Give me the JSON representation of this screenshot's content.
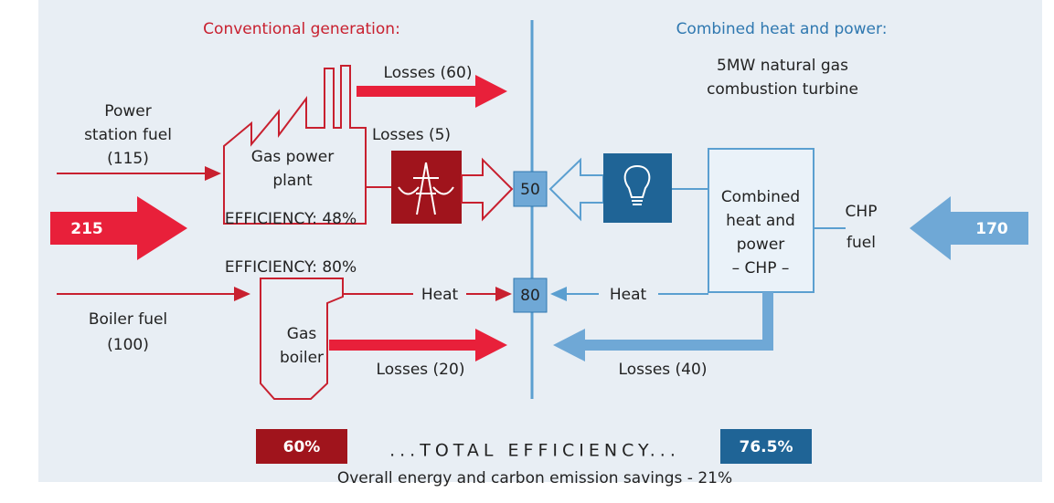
{
  "left": {
    "heading": "Conventional generation:",
    "input_total": "215",
    "power_fuel": [
      "Power",
      "station fuel",
      "(115)"
    ],
    "plant": [
      "Gas power",
      "plant"
    ],
    "plant_efficiency": "EFFICIENCY: 48%",
    "losses_plant": "Losses (60)",
    "losses_transmission": "Losses (5)",
    "boiler_efficiency": "EFFICIENCY: 80%",
    "boiler_fuel": [
      "Boiler fuel",
      "(100)"
    ],
    "boiler": [
      "Gas",
      "boiler"
    ],
    "heat": "Heat",
    "losses_boiler": "Losses (20)"
  },
  "center": {
    "electricity": "50",
    "heat": "80"
  },
  "right": {
    "heading": "Combined heat and power:",
    "subheading": [
      "5MW natural gas",
      "combustion turbine"
    ],
    "chp": [
      "Combined",
      "heat and",
      "power",
      "– CHP –"
    ],
    "fuel": [
      "CHP",
      "fuel"
    ],
    "input_total": "170",
    "heat": "Heat",
    "losses": "Losses (40)"
  },
  "footer": {
    "left_efficiency": "60%",
    "label": "...TOTAL EFFICIENCY...",
    "right_efficiency": "76.5%",
    "savings": "Overall energy and carbon emission savings - 21%"
  }
}
